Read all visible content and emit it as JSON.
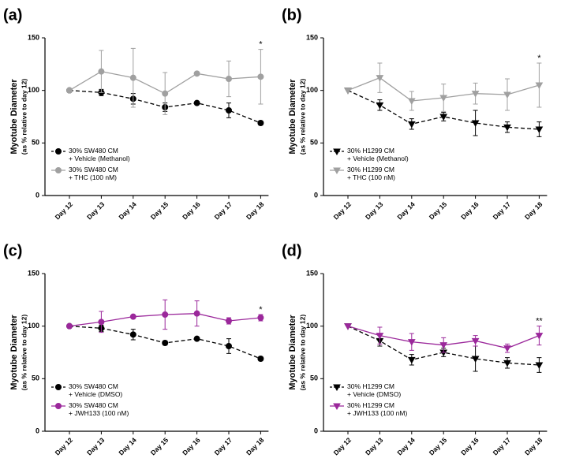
{
  "chart_data": [
    {
      "type": "line",
      "panel_label": "(a)",
      "ylabel": "Myotube Diameter",
      "ylabel_note": "(as % relative to day 12)",
      "categories": [
        "Day 12",
        "Day 13",
        "Day 14",
        "Day 15",
        "Day 16",
        "Day 17",
        "Day 18"
      ],
      "ylim": [
        0,
        150
      ],
      "yticks": [
        0,
        50,
        100,
        150
      ],
      "legend": "lower left",
      "series": [
        {
          "name": "30% SW480 CM\n+ Vehicle (Methanol)",
          "color": "#000000",
          "marker": "circle",
          "dashed": true,
          "values": [
            100,
            98,
            92,
            84,
            88,
            81,
            69
          ],
          "errors": [
            0,
            3,
            5,
            4,
            1,
            7,
            2
          ]
        },
        {
          "name": "30% SW480 CM\n+ THC (100 nM)",
          "color": "#a0a0a0",
          "marker": "circle",
          "dashed": false,
          "values": [
            100,
            118,
            112,
            97,
            116,
            111,
            113
          ],
          "errors": [
            0,
            20,
            28,
            20,
            1,
            17,
            26
          ]
        }
      ],
      "annotations": [
        {
          "text": "*",
          "x": "Day 18"
        }
      ]
    },
    {
      "type": "line",
      "panel_label": "(b)",
      "ylabel": "Myotube Diameter",
      "ylabel_note": "(as % relative to day 12)",
      "categories": [
        "Day 12",
        "Day 13",
        "Day 14",
        "Day 15",
        "Day 16",
        "Day 17",
        "Day 18"
      ],
      "ylim": [
        0,
        150
      ],
      "yticks": [
        0,
        50,
        100,
        150
      ],
      "legend": "lower left",
      "series": [
        {
          "name": "30% H1299 CM\n+ Vehicle (Methanol)",
          "color": "#000000",
          "marker": "triangle-down",
          "dashed": true,
          "values": [
            100,
            86,
            68,
            75,
            69,
            65,
            63
          ],
          "errors": [
            0,
            5,
            5,
            4,
            12,
            5,
            7
          ]
        },
        {
          "name": "30% H1299 CM\n+ THC (100 nM)",
          "color": "#a0a0a0",
          "marker": "triangle-down",
          "dashed": false,
          "values": [
            100,
            112,
            90,
            93,
            97,
            96,
            105
          ],
          "errors": [
            0,
            14,
            9,
            13,
            10,
            15,
            21
          ]
        }
      ],
      "annotations": [
        {
          "text": "*",
          "x": "Day 18"
        }
      ]
    },
    {
      "type": "line",
      "panel_label": "(c)",
      "ylabel": "Myotube Diameter",
      "ylabel_note": "(as % relative to day 12)",
      "categories": [
        "Day 12",
        "Day 13",
        "Day 14",
        "Day 15",
        "Day 16",
        "Day 17",
        "Day 18"
      ],
      "ylim": [
        0,
        150
      ],
      "yticks": [
        0,
        50,
        100,
        150
      ],
      "legend": "lower left",
      "series": [
        {
          "name": "30% SW480 CM\n+ Vehicle (DMSO)",
          "color": "#000000",
          "marker": "circle",
          "dashed": true,
          "values": [
            100,
            98,
            92,
            84,
            88,
            81,
            69
          ],
          "errors": [
            0,
            3,
            5,
            2,
            1,
            7,
            2
          ]
        },
        {
          "name": "30% SW480 CM\n+ JWH133 (100 nM)",
          "color": "#9b289b",
          "marker": "circle",
          "dashed": false,
          "values": [
            100,
            104,
            109,
            111,
            112,
            105,
            108
          ],
          "errors": [
            0,
            10,
            1,
            14,
            12,
            3,
            3
          ]
        }
      ],
      "annotations": [
        {
          "text": "*",
          "x": "Day 18"
        }
      ]
    },
    {
      "type": "line",
      "panel_label": "(d)",
      "ylabel": "Myotube Diameter",
      "ylabel_note": "(as % relative to day 12)",
      "categories": [
        "Day 12",
        "Day 13",
        "Day 14",
        "Day 15",
        "Day 16",
        "Day 17",
        "Day 18"
      ],
      "ylim": [
        0,
        150
      ],
      "yticks": [
        0,
        50,
        100,
        150
      ],
      "legend": "lower left",
      "series": [
        {
          "name": "30% H1299 CM\n+ Vehicle (DMSO)",
          "color": "#000000",
          "marker": "triangle-down",
          "dashed": true,
          "values": [
            100,
            86,
            68,
            75,
            69,
            65,
            63
          ],
          "errors": [
            0,
            5,
            5,
            4,
            12,
            5,
            7
          ]
        },
        {
          "name": "30% H1299 CM\n+ JWH133 (100 nM)",
          "color": "#9b289b",
          "marker": "triangle-down",
          "dashed": false,
          "values": [
            100,
            91,
            85,
            82,
            86,
            79,
            91
          ],
          "errors": [
            0,
            8,
            8,
            7,
            5,
            4,
            9
          ]
        }
      ],
      "annotations": [
        {
          "text": "**",
          "x": "Day 18"
        }
      ]
    }
  ]
}
